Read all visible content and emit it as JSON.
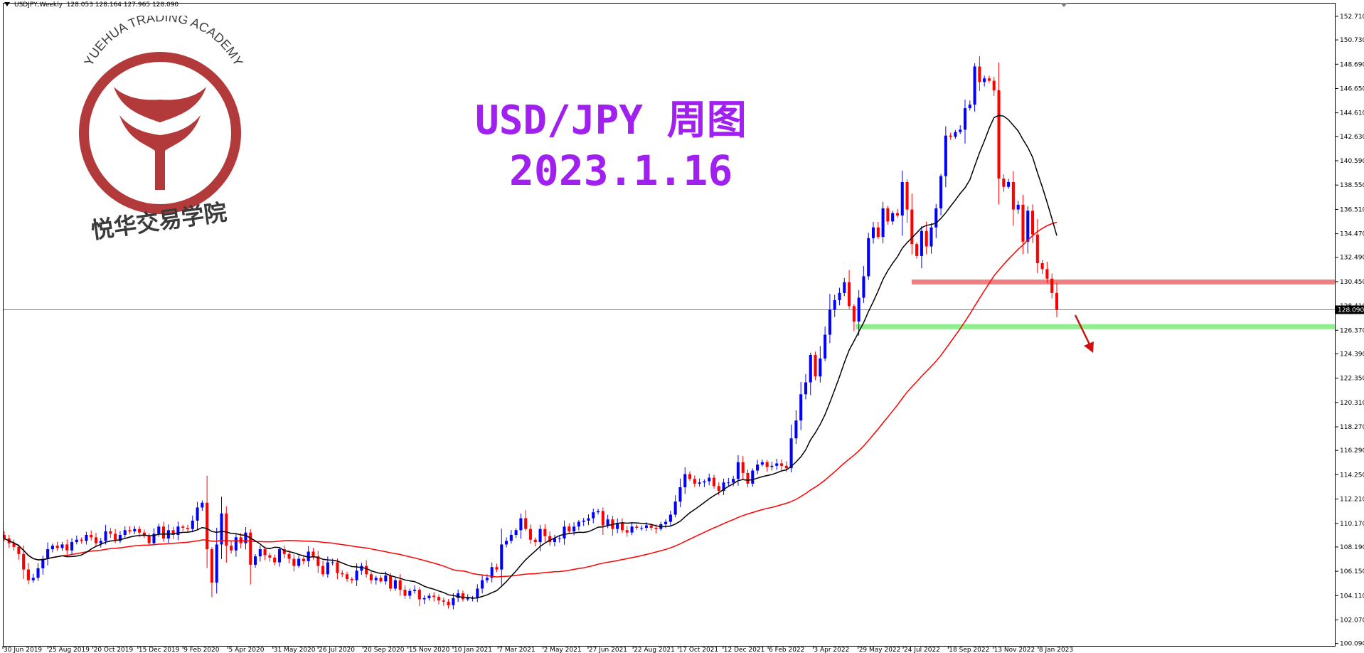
{
  "header": {
    "symbol": "USDJPY,Weekly",
    "ohlc": "128.053 128.164 127.965 128.090"
  },
  "overlay": {
    "title_line1": "USD/JPY 周图",
    "title_line2": "2023.1.16",
    "logo_arc_text": "YUEHUA TRADING ACADEMY",
    "logo_cn_text": "悦华交易学院"
  },
  "chart_data": {
    "type": "candlestick",
    "title": "",
    "ylim": [
      100.07,
      153.6
    ],
    "y_ticks": [
      "152.710",
      "150.730",
      "148.690",
      "146.650",
      "144.610",
      "142.630",
      "140.590",
      "138.550",
      "136.510",
      "134.470",
      "132.490",
      "130.450",
      "128.410",
      "126.370",
      "124.390",
      "122.350",
      "120.310",
      "118.270",
      "116.290",
      "114.250",
      "112.210",
      "110.170",
      "108.190",
      "106.150",
      "104.110",
      "102.070",
      "100.090"
    ],
    "x_tick_labels": [
      "30 Jun 2019",
      "25 Aug 2019",
      "20 Oct 2019",
      "15 Dec 2019",
      "9 Feb 2020",
      "5 Apr 2020",
      "31 May 2020",
      "26 Jul 2020",
      "20 Sep 2020",
      "15 Nov 2020",
      "10 Jan 2021",
      "7 Mar 2021",
      "2 May 2021",
      "27 Jun 2021",
      "22 Aug 2021",
      "17 Oct 2021",
      "12 Dec 2021",
      "6 Feb 2022",
      "3 Apr 2022",
      "29 May 2022",
      "24 Jul 2022",
      "18 Sep 2022",
      "13 Nov 2022",
      "8 Jan 2023"
    ],
    "current_price": "128.090",
    "up_color": "#0000ff",
    "down_color": "#ff0000",
    "resistance_zone": {
      "price": 130.45,
      "color": "#f08080"
    },
    "support_zone": {
      "price": 126.7,
      "color": "#90ee90"
    },
    "closes": [
      108.9,
      108.5,
      108.2,
      107.6,
      106.3,
      105.4,
      105.6,
      106.4,
      107.2,
      108.0,
      108.3,
      108.1,
      108.4,
      107.9,
      108.6,
      108.8,
      108.7,
      109.2,
      109.0,
      108.5,
      108.7,
      109.5,
      109.3,
      108.7,
      109.2,
      109.6,
      109.5,
      109.7,
      109.4,
      109.1,
      108.5,
      109.3,
      109.9,
      108.9,
      109.6,
      109.2,
      109.9,
      109.8,
      109.7,
      110.4,
      111.5,
      111.9,
      108.0,
      105.2,
      108.4,
      111.0,
      108.3,
      107.9,
      109.0,
      108.5,
      109.4,
      106.7,
      107.4,
      108.0,
      107.5,
      107.3,
      106.9,
      108.0,
      107.6,
      107.2,
      106.6,
      107.2,
      107.0,
      107.8,
      107.4,
      106.6,
      105.9,
      106.9,
      106.9,
      106.0,
      105.9,
      105.5,
      105.4,
      106.2,
      106.6,
      105.9,
      105.4,
      105.6,
      105.3,
      105.8,
      104.7,
      105.4,
      104.6,
      104.1,
      104.5,
      104.6,
      103.8,
      103.9,
      104.1,
      104.0,
      103.7,
      103.6,
      103.3,
      103.9,
      104.3,
      103.8,
      103.9,
      103.9,
      104.7,
      105.4,
      105.6,
      106.5,
      106.3,
      108.4,
      108.7,
      109.2,
      109.6,
      110.6,
      109.7,
      108.8,
      108.6,
      109.7,
      109.1,
      108.6,
      108.9,
      108.9,
      109.9,
      109.5,
      109.9,
      110.3,
      110.4,
      110.6,
      111.1,
      111.2,
      110.0,
      110.5,
      109.7,
      110.2,
      109.6,
      109.4,
      109.9,
      109.8,
      109.8,
      110.0,
      109.8,
      109.7,
      110.1,
      110.3,
      110.9,
      112.0,
      113.2,
      114.3,
      113.9,
      113.5,
      113.6,
      113.7,
      114.0,
      113.3,
      112.9,
      113.6,
      113.6,
      113.9,
      115.3,
      114.4,
      113.5,
      114.6,
      115.1,
      115.3,
      114.9,
      115.0,
      115.2,
      115.0,
      114.8,
      117.3,
      118.8,
      121.0,
      122.0,
      124.3,
      122.5,
      124.0,
      126.0,
      128.1,
      128.9,
      129.5,
      130.4,
      128.4,
      127.1,
      129.1,
      130.9,
      134.1,
      135.0,
      134.2,
      136.6,
      135.5,
      136.2,
      136.0,
      138.8,
      136.5,
      133.6,
      132.6,
      134.7,
      133.4,
      135.0,
      136.6,
      139.3,
      142.7,
      142.6,
      143.0,
      143.2,
      145.0,
      145.3,
      148.5,
      147.2,
      147.5,
      147.3,
      146.5,
      139.1,
      138.4,
      138.8,
      136.5,
      136.9,
      133.8,
      136.4,
      134.4,
      132.0,
      131.5,
      130.7,
      129.5,
      128.09
    ],
    "ma_black_period": 13,
    "ma_red_period": 52
  }
}
